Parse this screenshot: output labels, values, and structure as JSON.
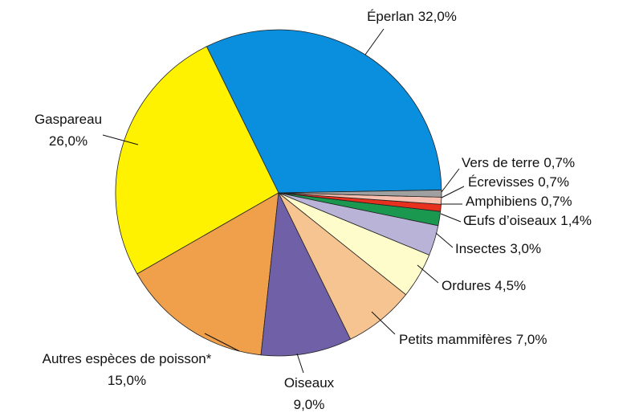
{
  "chart_data": {
    "type": "pie",
    "categories": [
      "Éperlan",
      "Gaspareau",
      "Autres espèces de poisson*",
      "Oiseaux",
      "Petits mammifères",
      "Ordures",
      "Insectes",
      "Œufs d’oiseaux",
      "Amphibiens",
      "Écrevisses",
      "Vers de terre"
    ],
    "values": [
      32.0,
      26.0,
      15.0,
      9.0,
      7.0,
      4.5,
      3.0,
      1.4,
      0.7,
      0.7,
      0.7
    ],
    "value_labels": [
      "32,0%",
      "26,0%",
      "15,0%",
      "9,0%",
      "7,0%",
      "4,5%",
      "3,0%",
      "1,4%",
      "0,7%",
      "0,7%",
      "0,7%"
    ],
    "colors": [
      "#0a8fde",
      "#fff200",
      "#f0a04b",
      "#7060a8",
      "#f5c490",
      "#fffccc",
      "#b9b3d8",
      "#1a9850",
      "#e8301f",
      "#f7c0b0",
      "#a0a0a0"
    ]
  }
}
